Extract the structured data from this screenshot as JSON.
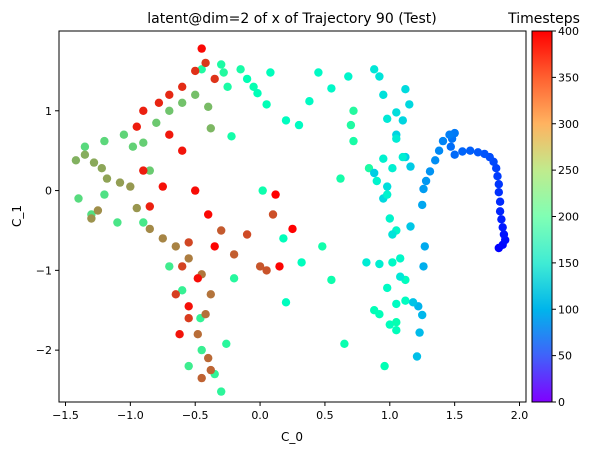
{
  "chart_data": {
    "type": "scatter",
    "title": "latent@dim=2 of x of Trajectory 90 (Test)",
    "xlabel": "C_0",
    "ylabel": "C_1",
    "xlim": [
      -1.55,
      2.05
    ],
    "ylim": [
      -2.65,
      2.0
    ],
    "xticks": [
      -1.5,
      -1.0,
      -0.5,
      0.0,
      0.5,
      1.0,
      1.5,
      2.0
    ],
    "xtick_labels": [
      "−1.5",
      "−1.0",
      "−0.5",
      "0.0",
      "0.5",
      "1.0",
      "1.5",
      "2.0"
    ],
    "yticks": [
      -2,
      -1,
      0,
      1
    ],
    "ytick_labels": [
      "−2",
      "−1",
      "0",
      "1"
    ],
    "grid": false,
    "colormap": "rainbow",
    "colorbar": {
      "label": "Timesteps",
      "range": [
        0,
        400
      ],
      "ticks": [
        0,
        50,
        100,
        150,
        200,
        250,
        300,
        350,
        400
      ],
      "tick_labels": [
        "0",
        "50",
        "100",
        "150",
        "200",
        "250",
        "300",
        "350",
        "400"
      ]
    },
    "points": [
      [
        1.84,
        -0.72,
        0
      ],
      [
        1.87,
        -0.68,
        3
      ],
      [
        1.89,
        -0.62,
        6
      ],
      [
        1.88,
        -0.55,
        9
      ],
      [
        1.87,
        -0.46,
        12
      ],
      [
        1.86,
        -0.36,
        15
      ],
      [
        1.85,
        -0.26,
        18
      ],
      [
        1.85,
        -0.14,
        21
      ],
      [
        1.84,
        -0.02,
        24
      ],
      [
        1.84,
        0.08,
        27
      ],
      [
        1.83,
        0.18,
        30
      ],
      [
        1.82,
        0.28,
        33
      ],
      [
        1.8,
        0.36,
        36
      ],
      [
        1.77,
        0.42,
        39
      ],
      [
        1.73,
        0.46,
        42
      ],
      [
        1.68,
        0.48,
        45
      ],
      [
        1.62,
        0.5,
        48
      ],
      [
        1.56,
        0.49,
        51
      ],
      [
        1.5,
        0.45,
        54
      ],
      [
        1.47,
        0.55,
        57
      ],
      [
        1.48,
        0.65,
        60
      ],
      [
        1.5,
        0.72,
        63
      ],
      [
        1.46,
        0.7,
        66
      ],
      [
        1.41,
        0.62,
        69
      ],
      [
        1.38,
        0.5,
        72
      ],
      [
        1.35,
        0.38,
        75
      ],
      [
        1.31,
        0.24,
        78
      ],
      [
        1.28,
        0.12,
        81
      ],
      [
        1.26,
        0.02,
        84
      ],
      [
        1.25,
        -0.18,
        90
      ],
      [
        1.27,
        -0.7,
        93
      ],
      [
        1.26,
        -0.95,
        96
      ],
      [
        1.22,
        -1.45,
        99
      ],
      [
        1.25,
        -1.56,
        102
      ],
      [
        1.23,
        -1.78,
        105
      ],
      [
        1.21,
        -2.08,
        108
      ],
      [
        1.18,
        -1.4,
        111
      ],
      [
        1.16,
        -0.45,
        114
      ],
      [
        1.16,
        0.3,
        117
      ],
      [
        1.12,
        0.42,
        120
      ],
      [
        1.05,
        0.7,
        123
      ],
      [
        1.1,
        0.88,
        126
      ],
      [
        1.15,
        1.08,
        129
      ],
      [
        1.12,
        1.27,
        132
      ],
      [
        1.05,
        0.98,
        135
      ],
      [
        0.95,
        1.2,
        138
      ],
      [
        0.92,
        1.43,
        141
      ],
      [
        0.88,
        1.52,
        144
      ],
      [
        0.98,
        0.9,
        147
      ],
      [
        1.05,
        0.65,
        150
      ],
      [
        1.1,
        0.42,
        153
      ],
      [
        1.02,
        0.28,
        156
      ],
      [
        0.95,
        0.4,
        159
      ],
      [
        0.9,
        0.12,
        162
      ],
      [
        1.0,
        -0.35,
        165
      ],
      [
        1.05,
        -0.5,
        168
      ],
      [
        1.08,
        -0.85,
        171
      ],
      [
        1.02,
        -0.9,
        174
      ],
      [
        0.98,
        -1.22,
        177
      ],
      [
        1.05,
        -1.42,
        180
      ],
      [
        1.12,
        -1.38,
        183
      ],
      [
        1.12,
        -1.12,
        186
      ],
      [
        1.0,
        -1.68,
        189
      ],
      [
        1.05,
        -1.75,
        192
      ],
      [
        0.92,
        -1.55,
        195
      ],
      [
        0.88,
        -1.5,
        198
      ],
      [
        0.96,
        -2.2,
        201
      ],
      [
        1.05,
        -1.65,
        204
      ],
      [
        0.65,
        -1.92,
        207
      ],
      [
        0.55,
        -1.12,
        210
      ],
      [
        0.48,
        -0.7,
        213
      ],
      [
        0.62,
        0.15,
        216
      ],
      [
        0.72,
        0.62,
        219
      ],
      [
        0.84,
        0.28,
        222
      ],
      [
        0.7,
        0.82,
        225
      ],
      [
        0.72,
        1.0,
        228
      ],
      [
        0.88,
        0.22,
        120
      ],
      [
        0.95,
        -0.1,
        130
      ],
      [
        0.98,
        0.05,
        135
      ],
      [
        1.02,
        -0.55,
        140
      ],
      [
        1.08,
        -1.08,
        145
      ],
      [
        0.82,
        -0.9,
        150
      ],
      [
        0.92,
        -0.92,
        155
      ],
      [
        0.98,
        -0.05,
        160
      ],
      [
        0.68,
        1.43,
        165
      ],
      [
        0.55,
        1.28,
        170
      ],
      [
        0.45,
        1.48,
        175
      ],
      [
        0.38,
        1.12,
        178
      ],
      [
        0.3,
        0.82,
        180
      ],
      [
        0.2,
        0.88,
        184
      ],
      [
        0.2,
        -1.4,
        186
      ],
      [
        0.32,
        -0.9,
        188
      ],
      [
        0.08,
        1.48,
        190
      ],
      [
        0.18,
        -0.6,
        192
      ],
      [
        -0.02,
        1.22,
        195
      ],
      [
        0.05,
        1.08,
        198
      ],
      [
        -0.1,
        1.4,
        200
      ],
      [
        -0.05,
        1.3,
        205
      ],
      [
        0.02,
        0.0,
        210
      ],
      [
        -0.22,
        0.68,
        215
      ],
      [
        -0.15,
        1.52,
        218
      ],
      [
        -0.25,
        1.3,
        220
      ],
      [
        -0.3,
        1.58,
        222
      ],
      [
        -0.45,
        1.52,
        225
      ],
      [
        -0.28,
        1.48,
        228
      ],
      [
        -0.2,
        -1.1,
        230
      ],
      [
        -0.26,
        -1.92,
        232
      ],
      [
        -0.3,
        -2.52,
        235
      ],
      [
        -0.35,
        -2.3,
        238
      ],
      [
        -0.46,
        -1.6,
        240
      ],
      [
        -0.6,
        -1.25,
        242
      ],
      [
        -0.45,
        -2.0,
        245
      ],
      [
        -0.55,
        -2.2,
        248
      ],
      [
        -0.7,
        -0.95,
        250
      ],
      [
        -0.9,
        -0.4,
        255
      ],
      [
        -1.1,
        -0.4,
        258
      ],
      [
        -1.2,
        -0.05,
        262
      ],
      [
        -1.3,
        -0.3,
        265
      ],
      [
        -1.4,
        -0.1,
        268
      ],
      [
        -1.35,
        0.55,
        270
      ],
      [
        -1.2,
        0.62,
        272
      ],
      [
        -1.05,
        0.7,
        275
      ],
      [
        -0.98,
        0.55,
        278
      ],
      [
        -0.9,
        0.6,
        280
      ],
      [
        -0.85,
        0.25,
        283
      ],
      [
        -0.8,
        0.85,
        285
      ],
      [
        -0.7,
        1.0,
        288
      ],
      [
        -0.6,
        1.1,
        290
      ],
      [
        -0.5,
        1.2,
        292
      ],
      [
        -0.4,
        1.05,
        295
      ],
      [
        -0.38,
        0.78,
        298
      ],
      [
        -1.42,
        0.38,
        302
      ],
      [
        -1.35,
        0.45,
        305
      ],
      [
        -1.28,
        0.35,
        308
      ],
      [
        -1.22,
        0.28,
        310
      ],
      [
        -1.18,
        0.15,
        312
      ],
      [
        -1.08,
        0.1,
        315
      ],
      [
        -1.0,
        0.05,
        318
      ],
      [
        -0.95,
        -0.22,
        320
      ],
      [
        -1.3,
        -0.35,
        322
      ],
      [
        -1.25,
        -0.25,
        325
      ],
      [
        -0.85,
        -0.48,
        328
      ],
      [
        -0.75,
        -0.6,
        330
      ],
      [
        -0.65,
        -0.7,
        332
      ],
      [
        -0.55,
        -0.85,
        335
      ],
      [
        -0.45,
        -1.05,
        338
      ],
      [
        -0.38,
        -1.3,
        340
      ],
      [
        -0.42,
        -1.55,
        342
      ],
      [
        -0.48,
        -1.8,
        344
      ],
      [
        -0.4,
        -2.1,
        346
      ],
      [
        -0.38,
        -2.25,
        348
      ],
      [
        -0.45,
        -2.35,
        350
      ],
      [
        -0.2,
        -0.8,
        352
      ],
      [
        -0.3,
        -0.5,
        354
      ],
      [
        0.0,
        -0.95,
        356
      ],
      [
        0.05,
        -1.0,
        358
      ],
      [
        0.1,
        -0.3,
        360
      ],
      [
        -0.1,
        -0.55,
        362
      ],
      [
        -0.55,
        -0.65,
        364
      ],
      [
        -0.6,
        -0.95,
        366
      ],
      [
        -0.65,
        -1.3,
        368
      ],
      [
        -0.55,
        -1.6,
        370
      ],
      [
        -0.42,
        1.6,
        372
      ],
      [
        -0.35,
        1.4,
        374
      ],
      [
        -0.5,
        1.5,
        376
      ],
      [
        -0.6,
        1.3,
        378
      ],
      [
        -0.7,
        1.2,
        380
      ],
      [
        -0.78,
        1.1,
        382
      ],
      [
        -0.9,
        1.0,
        384
      ],
      [
        -0.95,
        0.8,
        386
      ],
      [
        -0.7,
        0.7,
        388
      ],
      [
        -0.6,
        0.5,
        390
      ],
      [
        -0.75,
        0.05,
        392
      ],
      [
        -0.5,
        0.0,
        394
      ],
      [
        -0.4,
        -0.3,
        396
      ],
      [
        -0.35,
        -0.7,
        398
      ],
      [
        0.12,
        -0.05,
        400
      ],
      [
        0.25,
        -0.48,
        400
      ],
      [
        0.15,
        -0.95,
        398
      ],
      [
        -0.45,
        1.78,
        396
      ],
      [
        -0.48,
        -1.1,
        394
      ],
      [
        -0.55,
        -1.45,
        392
      ],
      [
        -0.62,
        -1.8,
        390
      ],
      [
        -0.9,
        0.25,
        386
      ],
      [
        -0.85,
        -0.2,
        384
      ]
    ]
  }
}
